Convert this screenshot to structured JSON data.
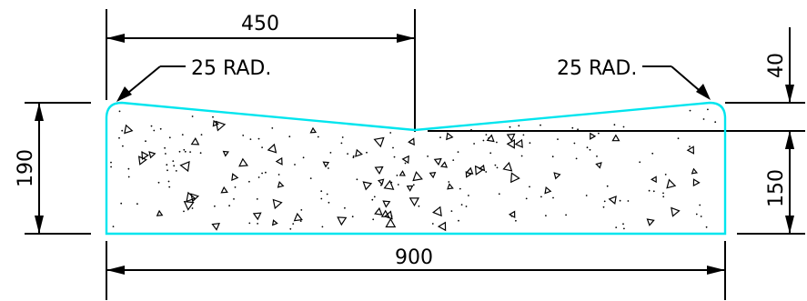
{
  "colors": {
    "outline": "#00e5ee",
    "dimension": "#000000",
    "background": "#ffffff"
  },
  "dimensions": {
    "top_half_width": "450",
    "total_width": "900",
    "total_height": "190",
    "edge_height": "150",
    "crossfall": "40",
    "radius_left": "25 RAD.",
    "radius_right": "25 RAD."
  }
}
